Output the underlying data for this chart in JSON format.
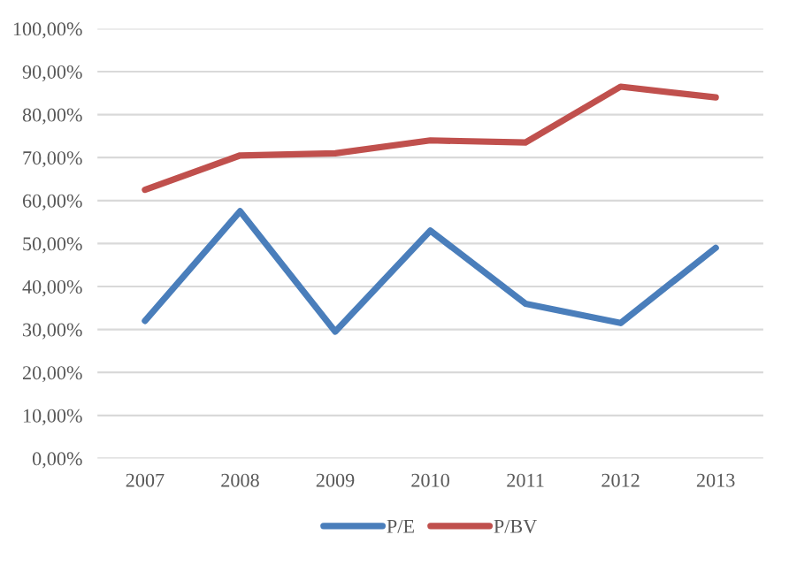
{
  "chart_data": {
    "type": "line",
    "categories": [
      "2007",
      "2008",
      "2009",
      "2010",
      "2011",
      "2012",
      "2013"
    ],
    "series": [
      {
        "name": "P/E",
        "color": "#4a7ebb",
        "values": [
          32,
          57.5,
          29.5,
          53,
          36,
          31.5,
          49
        ]
      },
      {
        "name": "P/BV",
        "color": "#c0504d",
        "values": [
          62.5,
          70.5,
          71,
          74,
          73.5,
          86.5,
          84
        ]
      }
    ],
    "ylim": [
      0,
      100
    ],
    "yticks": [
      {
        "value": 0,
        "label": "0,00%"
      },
      {
        "value": 10,
        "label": "10,00%"
      },
      {
        "value": 20,
        "label": "20,00%"
      },
      {
        "value": 30,
        "label": "30,00%"
      },
      {
        "value": 40,
        "label": "40,00%"
      },
      {
        "value": 50,
        "label": "50,00%"
      },
      {
        "value": 60,
        "label": "60,00%"
      },
      {
        "value": 70,
        "label": "70,00%"
      },
      {
        "value": 80,
        "label": "80,00%"
      },
      {
        "value": 90,
        "label": "90,00%"
      },
      {
        "value": 100,
        "label": "100,00%"
      }
    ],
    "grid": "y",
    "legend": "bottom",
    "marker": "none",
    "line_style": "solid"
  }
}
